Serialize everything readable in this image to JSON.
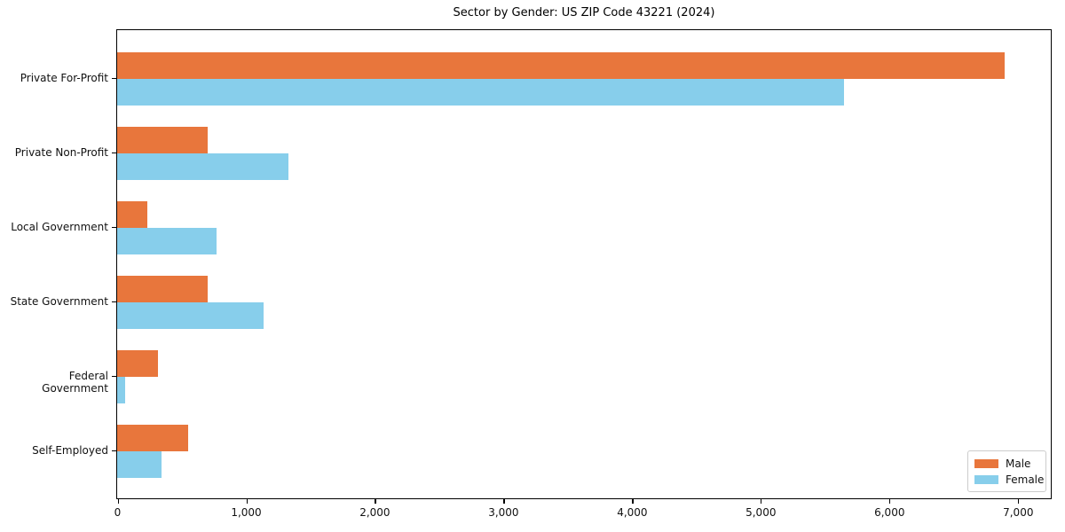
{
  "chart_data": {
    "type": "bar",
    "orientation": "horizontal",
    "title": "Sector by Gender: US ZIP Code 43221 (2024)",
    "categories": [
      "Private For-Profit",
      "Private Non-Profit",
      "Local Government",
      "State Government",
      "Federal Government",
      "Self-Employed"
    ],
    "series": [
      {
        "name": "Male",
        "color": "#e8763c",
        "values": [
          6900,
          700,
          235,
          700,
          320,
          550
        ]
      },
      {
        "name": "Female",
        "color": "#87ceeb",
        "values": [
          5650,
          1330,
          770,
          1140,
          60,
          345
        ]
      }
    ],
    "xlabel": "",
    "ylabel": "",
    "xlim": [
      0,
      7250
    ],
    "x_ticks": {
      "values": [
        0,
        1000,
        2000,
        3000,
        4000,
        5000,
        6000,
        7000
      ],
      "labels": [
        "0",
        "1,000",
        "2,000",
        "3,000",
        "4,000",
        "5,000",
        "6,000",
        "7,000"
      ]
    },
    "grid": false,
    "legend_position": "lower right",
    "background_color": "#ffffff",
    "axis_color": "#000000"
  }
}
